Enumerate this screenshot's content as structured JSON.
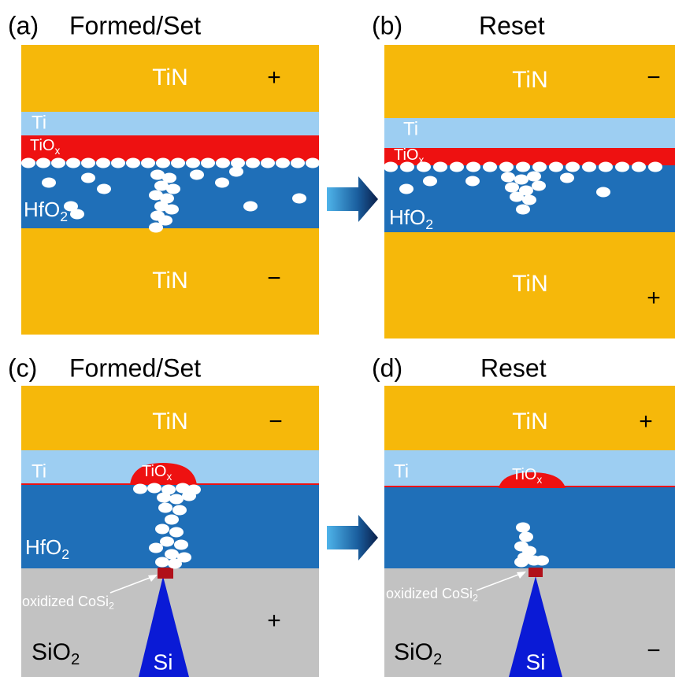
{
  "panels": [
    {
      "tag": "(a)",
      "title": "Formed/Set",
      "top_electrode": "TiN",
      "top_sign": "+",
      "ti": "Ti",
      "tiox": {
        "base": "TiO",
        "sub": "x"
      },
      "hfo2": {
        "base": "HfO",
        "sub": "2"
      },
      "bottom_electrode": "TiN",
      "bottom_sign": "−"
    },
    {
      "tag": "(b)",
      "title": "Reset",
      "top_electrode": "TiN",
      "top_sign": "−",
      "ti": "Ti",
      "tiox": {
        "base": "TiO",
        "sub": "x"
      },
      "hfo2": {
        "base": "HfO",
        "sub": "2"
      },
      "bottom_electrode": "TiN",
      "bottom_sign": "+"
    },
    {
      "tag": "(c)",
      "title": "Formed/Set",
      "top_electrode": "TiN",
      "top_sign": "−",
      "ti": "Ti",
      "tiox": {
        "base": "TiO",
        "sub": "x"
      },
      "hfo2": {
        "base": "HfO",
        "sub": "2"
      },
      "cosi2": {
        "base": "oxidized CoSi",
        "sub": "2"
      },
      "sio2": {
        "base": "SiO",
        "sub": "2"
      },
      "si": "Si",
      "bottom_sign": "+"
    },
    {
      "tag": "(d)",
      "title": "Reset",
      "top_electrode": "TiN",
      "top_sign": "+",
      "ti": "Ti",
      "tiox": {
        "base": "TiO",
        "sub": "x"
      },
      "cosi2": {
        "base": "oxidized CoSi",
        "sub": "2"
      },
      "sio2": {
        "base": "SiO",
        "sub": "2"
      },
      "si": "Si",
      "bottom_sign": "−"
    }
  ]
}
